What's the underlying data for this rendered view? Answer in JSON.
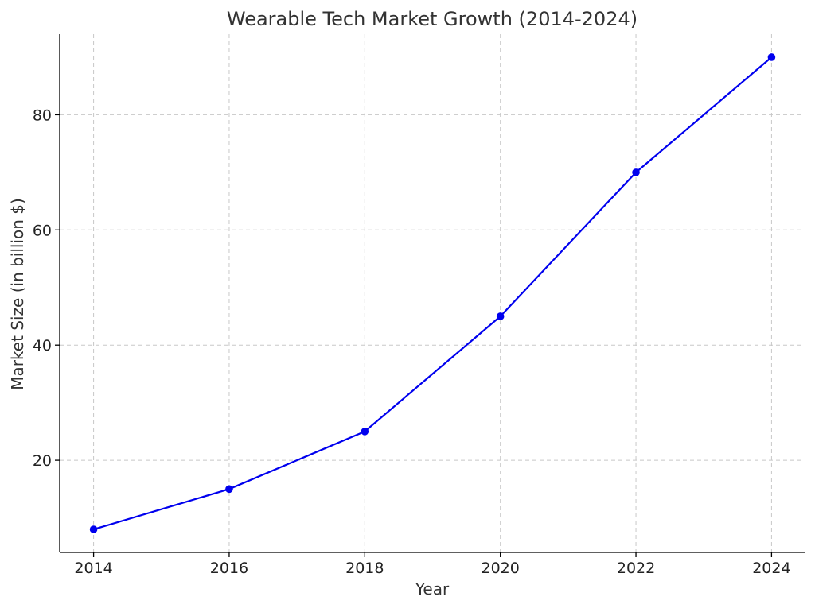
{
  "chart_data": {
    "type": "line",
    "title": "Wearable Tech Market Growth (2014-2024)",
    "xlabel": "Year",
    "ylabel": "Market Size (in billion $)",
    "x": [
      2014,
      2016,
      2018,
      2020,
      2022,
      2024
    ],
    "xticks": [
      "2014",
      "2016",
      "2018",
      "2020",
      "2022",
      "2024"
    ],
    "yticks": [
      20,
      40,
      60,
      80
    ],
    "xlim": [
      2013.5,
      2024.5
    ],
    "ylim": [
      4,
      94
    ],
    "grid": true,
    "series": [
      {
        "values": [
          8,
          15,
          25,
          45,
          70,
          90
        ],
        "color": "#0000ee",
        "marker": "circle"
      }
    ]
  }
}
